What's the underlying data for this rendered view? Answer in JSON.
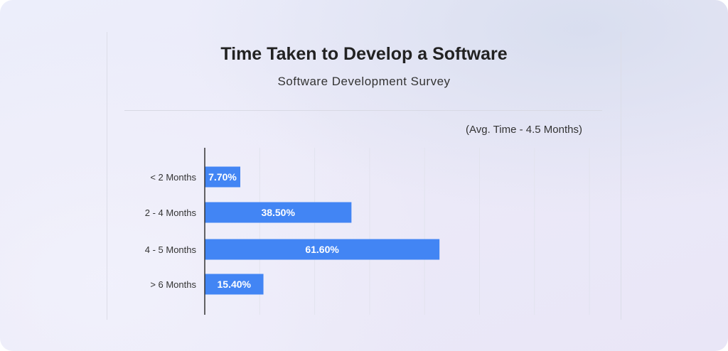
{
  "chart_data": {
    "type": "bar",
    "orientation": "horizontal",
    "title": "Time Taken to Develop a Software",
    "subtitle": "Software Development Survey",
    "annotation": "(Avg. Time - 4.5 Months)",
    "categories": [
      "< 2 Months",
      "2 - 4 Months",
      "4 - 5 Months",
      "> 6 Months"
    ],
    "values": [
      7.7,
      38.5,
      61.6,
      15.4
    ],
    "data_labels": [
      "7.70%",
      "38.50%",
      "61.60%",
      "15.40%"
    ],
    "xlim": [
      0,
      100
    ],
    "grid": true,
    "bar_color": "#4285f4"
  }
}
